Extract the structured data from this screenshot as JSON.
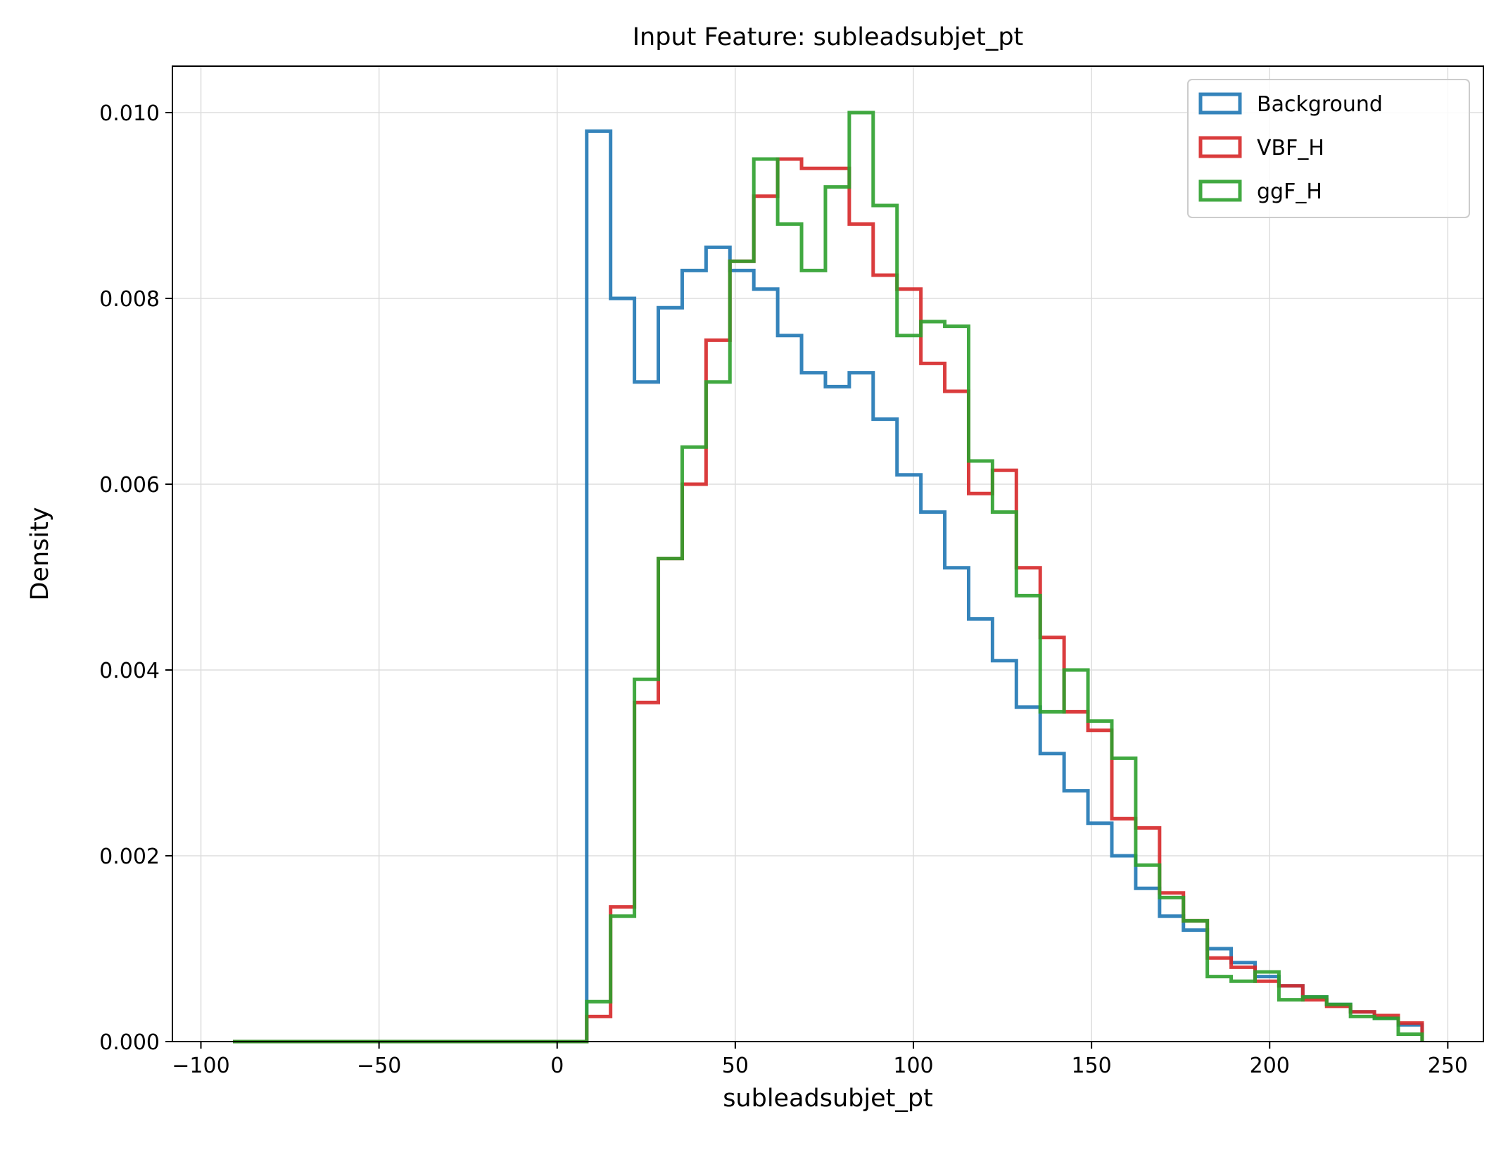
{
  "chart_data": {
    "type": "step-histogram",
    "title": "Input Feature: subleadsubjet_pt",
    "xlabel": "subleadsubjet_pt",
    "ylabel": "Density",
    "xlim": [
      -108,
      260
    ],
    "ylim": [
      0,
      0.0105
    ],
    "xticks": [
      -100,
      -50,
      0,
      50,
      100,
      150,
      200,
      250
    ],
    "xtick_labels": [
      "−100",
      "−50",
      "0",
      "50",
      "100",
      "150",
      "200",
      "250"
    ],
    "yticks": [
      0,
      0.002,
      0.004,
      0.006,
      0.008,
      0.01
    ],
    "ytick_labels": [
      "0.000",
      "0.002",
      "0.004",
      "0.006",
      "0.008",
      "0.010"
    ],
    "grid": true,
    "legend_position": "top-right",
    "bin_edges": [
      -91,
      8.3,
      15.0,
      21.7,
      28.4,
      35.1,
      41.8,
      48.5,
      55.2,
      61.9,
      68.6,
      75.3,
      82.0,
      88.7,
      95.4,
      102.1,
      108.8,
      115.5,
      122.2,
      128.9,
      135.6,
      142.3,
      149.0,
      155.7,
      162.4,
      169.1,
      175.8,
      182.5,
      189.2,
      195.9,
      202.6,
      209.3,
      216.0,
      222.7,
      229.4,
      236.1,
      242.8
    ],
    "series": [
      {
        "name": "Background",
        "color": "#1f77b4",
        "values": [
          0,
          0.0098,
          0.008,
          0.0071,
          0.0079,
          0.0083,
          0.00855,
          0.0083,
          0.0081,
          0.0076,
          0.0072,
          0.00705,
          0.0072,
          0.0067,
          0.0061,
          0.0057,
          0.0051,
          0.00455,
          0.0041,
          0.0036,
          0.0031,
          0.0027,
          0.00235,
          0.002,
          0.00165,
          0.00135,
          0.0012,
          0.001,
          0.00085,
          0.0007,
          0.0006,
          0.00048,
          0.0004,
          0.00032,
          0.00025,
          0.00018
        ]
      },
      {
        "name": "VBF_H",
        "color": "#d62728",
        "values": [
          0,
          0.00027,
          0.00145,
          0.00365,
          0.0052,
          0.006,
          0.00755,
          0.0084,
          0.0091,
          0.0095,
          0.0094,
          0.0094,
          0.0088,
          0.00825,
          0.0081,
          0.0073,
          0.007,
          0.0059,
          0.00615,
          0.0051,
          0.00435,
          0.00355,
          0.00335,
          0.0024,
          0.0023,
          0.0016,
          0.0013,
          0.0009,
          0.0008,
          0.00065,
          0.0006,
          0.00045,
          0.00038,
          0.00032,
          0.00028,
          0.0002
        ]
      },
      {
        "name": "ggF_H",
        "color": "#2ca02c",
        "values": [
          0,
          0.00043,
          0.00135,
          0.0039,
          0.0052,
          0.0064,
          0.0071,
          0.0084,
          0.0095,
          0.0088,
          0.0083,
          0.0092,
          0.01,
          0.009,
          0.0076,
          0.00775,
          0.0077,
          0.00625,
          0.0057,
          0.0048,
          0.00355,
          0.004,
          0.00345,
          0.00305,
          0.0019,
          0.00155,
          0.0013,
          0.0007,
          0.00065,
          0.00075,
          0.00045,
          0.00048,
          0.0004,
          0.00027,
          0.00025,
          8e-05
        ]
      }
    ]
  }
}
